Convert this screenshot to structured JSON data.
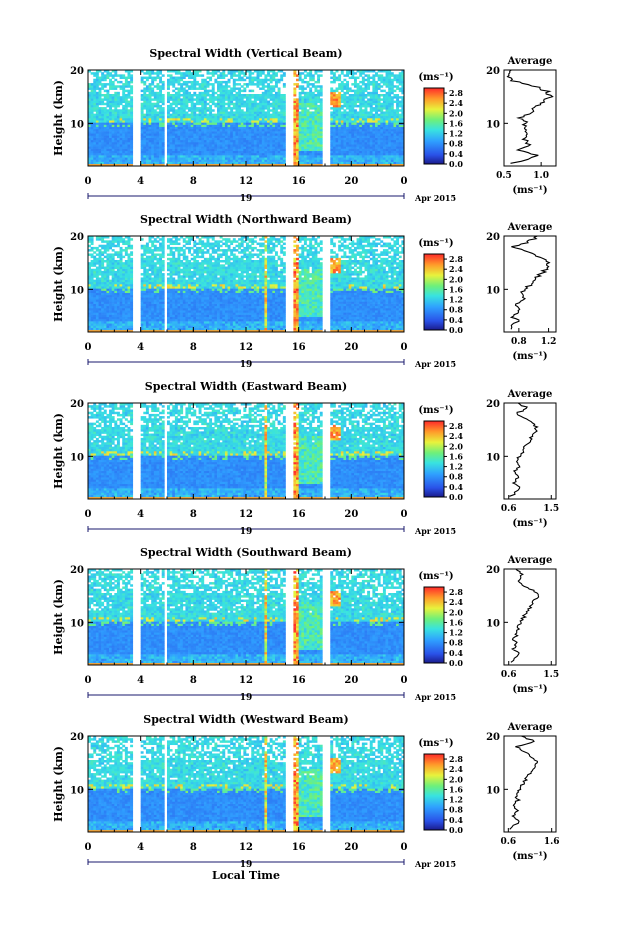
{
  "chart_data": [
    {
      "type": "heatmap",
      "title": "Spectral Width (Vertical Beam)",
      "ylabel": "Height (km)",
      "yticks": [
        "10",
        "20"
      ],
      "ylim": [
        2,
        20
      ],
      "xticks": [
        "0",
        "4",
        "8",
        "12",
        "16",
        "20",
        "0"
      ],
      "xlim": [
        0,
        24
      ],
      "day_label": "19",
      "month_label": "Apr 2015",
      "colorbar": {
        "unit": "(ms⁻¹)",
        "ticks": [
          "2.8",
          "2.4",
          "2.0",
          "1.6",
          "1.2",
          "0.8",
          "0.4",
          "0.0"
        ],
        "range": [
          0,
          3.0
        ]
      },
      "gaps_hours": [
        [
          3.5,
          4.0
        ],
        [
          5.7,
          6.0
        ],
        [
          15.1,
          15.6
        ],
        [
          17.9,
          18.3
        ]
      ],
      "enhanced_region_hours": [
        16.0,
        17.9
      ],
      "average_profile": {
        "title": "Average",
        "xlabel": "(ms⁻¹)",
        "xticks": [
          "0.5",
          "1.0"
        ],
        "xlim": [
          0.5,
          1.2
        ],
        "yticks": [
          "10",
          "20"
        ],
        "heights_km": [
          2.5,
          4,
          5,
          6,
          7,
          8,
          9,
          10,
          11,
          12,
          13,
          14,
          15,
          16,
          17,
          18,
          19,
          20
        ],
        "values": [
          0.62,
          0.95,
          0.72,
          0.85,
          0.78,
          0.82,
          0.76,
          0.8,
          0.7,
          0.85,
          0.92,
          1.02,
          1.12,
          1.08,
          0.9,
          0.62,
          0.55,
          0.6
        ]
      }
    },
    {
      "type": "heatmap",
      "title": "Spectral Width (Northward Beam)",
      "ylabel": "Height (km)",
      "yticks": [
        "10",
        "20"
      ],
      "ylim": [
        2,
        20
      ],
      "xticks": [
        "0",
        "4",
        "8",
        "12",
        "16",
        "20",
        "0"
      ],
      "xlim": [
        0,
        24
      ],
      "day_label": "19",
      "month_label": "Apr 2015",
      "colorbar": {
        "unit": "(ms⁻¹)",
        "ticks": [
          "2.8",
          "2.4",
          "2.0",
          "1.6",
          "1.2",
          "0.8",
          "0.4",
          "0.0"
        ],
        "range": [
          0,
          3.0
        ]
      },
      "gaps_hours": [
        [
          3.5,
          4.0
        ],
        [
          5.7,
          6.0
        ],
        [
          15.1,
          15.6
        ],
        [
          17.9,
          18.3
        ]
      ],
      "enhanced_region_hours": [
        16.0,
        17.9
      ],
      "average_profile": {
        "title": "Average",
        "xlabel": "(ms⁻¹)",
        "xticks": [
          "0.8",
          "1.2"
        ],
        "xlim": [
          0.6,
          1.3
        ],
        "yticks": [
          "10",
          "20"
        ],
        "heights_km": [
          2.5,
          4,
          5,
          6,
          7,
          8,
          9,
          10,
          11,
          12,
          13,
          14,
          15,
          16,
          17,
          18,
          19,
          20
        ],
        "values": [
          0.68,
          0.78,
          0.72,
          0.8,
          0.75,
          0.86,
          0.82,
          0.9,
          0.95,
          1.0,
          1.12,
          1.18,
          1.2,
          1.1,
          0.9,
          0.7,
          0.95,
          1.05
        ]
      }
    },
    {
      "type": "heatmap",
      "title": "Spectral Width (Eastward Beam)",
      "ylabel": "Height (km)",
      "yticks": [
        "10",
        "20"
      ],
      "ylim": [
        2,
        20
      ],
      "xticks": [
        "0",
        "4",
        "8",
        "12",
        "16",
        "20",
        "0"
      ],
      "xlim": [
        0,
        24
      ],
      "day_label": "19",
      "month_label": "Apr 2015",
      "colorbar": {
        "unit": "(ms⁻¹)",
        "ticks": [
          "2.8",
          "2.4",
          "2.0",
          "1.6",
          "1.2",
          "0.8",
          "0.4",
          "0.0"
        ],
        "range": [
          0,
          3.0
        ]
      },
      "gaps_hours": [
        [
          3.5,
          4.0
        ],
        [
          5.7,
          6.0
        ],
        [
          15.1,
          15.6
        ],
        [
          17.9,
          18.3
        ]
      ],
      "enhanced_region_hours": [
        16.0,
        17.9
      ],
      "average_profile": {
        "title": "Average",
        "xlabel": "(ms⁻¹)",
        "xticks": [
          "0.6",
          "1.5"
        ],
        "xlim": [
          0.5,
          1.6
        ],
        "yticks": [
          "10",
          "20"
        ],
        "heights_km": [
          2.5,
          4,
          5,
          6,
          7,
          8,
          9,
          10,
          11,
          12,
          13,
          14,
          15,
          16,
          17,
          18,
          19,
          20
        ],
        "values": [
          0.65,
          0.85,
          0.7,
          0.78,
          0.72,
          0.8,
          0.75,
          0.82,
          0.9,
          0.95,
          1.05,
          1.1,
          1.2,
          1.15,
          0.95,
          0.75,
          1.0,
          0.8
        ]
      }
    },
    {
      "type": "heatmap",
      "title": "Spectral Width (Southward Beam)",
      "ylabel": "Height (km)",
      "yticks": [
        "10",
        "20"
      ],
      "ylim": [
        2,
        20
      ],
      "xticks": [
        "0",
        "4",
        "8",
        "12",
        "16",
        "20",
        "0"
      ],
      "xlim": [
        0,
        24
      ],
      "day_label": "19",
      "month_label": "Apr 2015",
      "colorbar": {
        "unit": "(ms⁻¹)",
        "ticks": [
          "2.8",
          "2.4",
          "2.0",
          "1.6",
          "1.2",
          "0.8",
          "0.4",
          "0.0"
        ],
        "range": [
          0,
          3.0
        ]
      },
      "gaps_hours": [
        [
          3.5,
          4.0
        ],
        [
          5.7,
          6.0
        ],
        [
          15.1,
          15.6
        ],
        [
          17.9,
          18.3
        ]
      ],
      "enhanced_region_hours": [
        16.0,
        17.9
      ],
      "average_profile": {
        "title": "Average",
        "xlabel": "(ms⁻¹)",
        "xticks": [
          "0.6",
          "1.5"
        ],
        "xlim": [
          0.5,
          1.6
        ],
        "yticks": [
          "10",
          "20"
        ],
        "heights_km": [
          2.5,
          4,
          5,
          6,
          7,
          8,
          9,
          10,
          11,
          12,
          13,
          14,
          15,
          16,
          17,
          18,
          19,
          20
        ],
        "values": [
          0.62,
          0.82,
          0.7,
          0.76,
          0.7,
          0.8,
          0.78,
          0.85,
          0.92,
          0.98,
          1.08,
          1.12,
          1.22,
          1.1,
          0.9,
          0.8,
          0.9,
          0.75
        ]
      }
    },
    {
      "type": "heatmap",
      "title": "Spectral Width (Westward Beam)",
      "ylabel": "Height (km)",
      "yticks": [
        "10",
        "20"
      ],
      "ylim": [
        2,
        20
      ],
      "xticks": [
        "0",
        "4",
        "8",
        "12",
        "16",
        "20",
        "0"
      ],
      "xlim": [
        0,
        24
      ],
      "day_label": "19",
      "month_label": "Apr 2015",
      "colorbar": {
        "unit": "(ms⁻¹)",
        "ticks": [
          "2.8",
          "2.4",
          "2.0",
          "1.6",
          "1.2",
          "0.8",
          "0.4",
          "0.0"
        ],
        "range": [
          0,
          3.0
        ]
      },
      "gaps_hours": [
        [
          3.5,
          4.0
        ],
        [
          5.7,
          6.0
        ],
        [
          15.1,
          15.6
        ],
        [
          17.9,
          18.3
        ]
      ],
      "enhanced_region_hours": [
        16.0,
        17.9
      ],
      "average_profile": {
        "title": "Average",
        "xlabel": "(ms⁻¹)",
        "xticks": [
          "0.6",
          "1.6"
        ],
        "xlim": [
          0.5,
          1.7
        ],
        "yticks": [
          "10",
          "20"
        ],
        "heights_km": [
          2.5,
          4,
          5,
          6,
          7,
          8,
          9,
          10,
          11,
          12,
          13,
          14,
          15,
          16,
          17,
          18,
          19,
          20
        ],
        "values": [
          0.66,
          0.84,
          0.72,
          0.8,
          0.74,
          0.82,
          0.76,
          0.86,
          0.94,
          1.02,
          1.1,
          1.18,
          1.28,
          1.12,
          0.98,
          0.8,
          1.2,
          0.9
        ]
      }
    }
  ],
  "footer": {
    "xlabel": "Local Time"
  }
}
